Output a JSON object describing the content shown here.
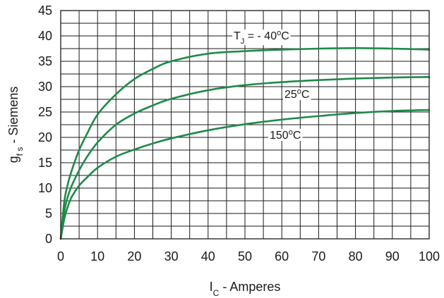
{
  "chart_data": {
    "type": "line",
    "xlabel": {
      "base": "I",
      "sub": "C",
      "rest": " - Amperes"
    },
    "ylabel": {
      "base": "g",
      "sub": "f s",
      "rest": " - Siemens"
    },
    "xlim": [
      0,
      100
    ],
    "ylim": [
      0,
      45
    ],
    "x_ticks": [
      0,
      10,
      20,
      30,
      40,
      50,
      60,
      70,
      80,
      90,
      100
    ],
    "y_ticks": [
      0,
      5,
      10,
      15,
      20,
      25,
      30,
      35,
      40,
      45
    ],
    "x_minor_step": 5,
    "y_minor_step": 5,
    "grid": true,
    "line_color": "#1e8a4a",
    "series": [
      {
        "label": {
          "base": "T",
          "sub": "J",
          "mid": " = - 40",
          "sup": "o",
          "end": "C"
        },
        "x": [
          0,
          1,
          2,
          3,
          5,
          7,
          10,
          15,
          20,
          25,
          30,
          40,
          50,
          60,
          70,
          80,
          90,
          100
        ],
        "y": [
          0,
          7.5,
          11,
          13.5,
          17.5,
          20.5,
          24.5,
          28.5,
          31.5,
          33.5,
          35,
          36.5,
          37,
          37.3,
          37.5,
          37.6,
          37.5,
          37.3
        ]
      },
      {
        "label": {
          "base": "25",
          "sup": "o",
          "end": "C"
        },
        "x": [
          0,
          1,
          2,
          3,
          5,
          7,
          10,
          15,
          20,
          25,
          30,
          40,
          50,
          60,
          70,
          80,
          90,
          100
        ],
        "y": [
          0,
          5.5,
          8.5,
          10.5,
          13.5,
          16,
          19,
          22.5,
          24.7,
          26.3,
          27.6,
          29.3,
          30.3,
          30.9,
          31.3,
          31.6,
          31.8,
          31.9
        ]
      },
      {
        "label": {
          "base": "150",
          "sup": "o",
          "end": "C"
        },
        "x": [
          0,
          1,
          2,
          3,
          5,
          7,
          10,
          15,
          20,
          25,
          30,
          40,
          50,
          60,
          70,
          80,
          90,
          100
        ],
        "y": [
          0,
          4,
          6.5,
          8.3,
          10.5,
          12,
          14,
          16.2,
          17.6,
          18.8,
          19.8,
          21.4,
          22.6,
          23.5,
          24.2,
          24.8,
          25.2,
          25.4
        ]
      }
    ]
  }
}
